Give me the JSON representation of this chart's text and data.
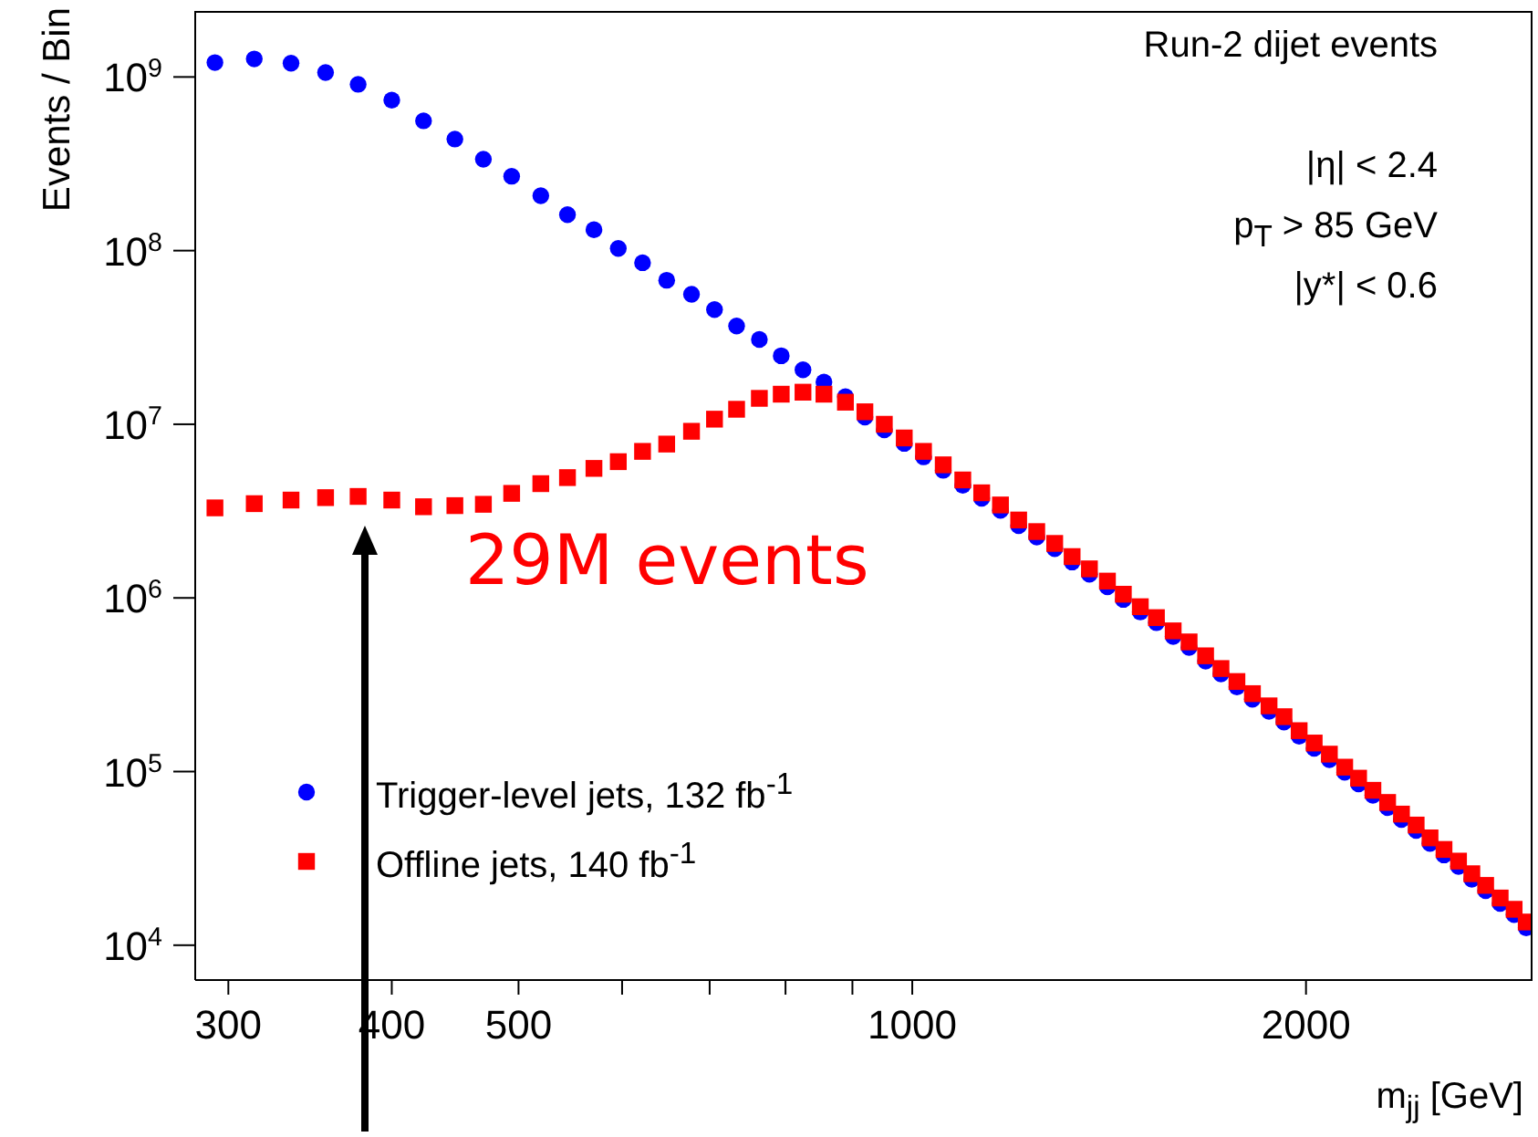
{
  "chart_data": {
    "type": "scatter",
    "xlabel": "m$_{jj}$ [GeV]",
    "ylabel": "Events / Bin",
    "log": "xy",
    "grid": false,
    "legend": "bottom left",
    "annotations": [
      "Run-2 dijet events",
      "|η| < 2.4",
      "p$_{T}$ > 85 GeV",
      "|y*| < 0.6",
      "29M events"
    ],
    "xlim": [
      283,
      2980
    ],
    "ylim": [
      6300,
      2400000000
    ],
    "xticks": [
      300,
      400,
      500,
      {
        "value": 600,
        "label": null
      },
      {
        "value": 700,
        "label": null
      },
      {
        "value": 800,
        "label": null
      },
      {
        "value": 900,
        "label": null
      },
      1000,
      2000
    ],
    "yticks": [
      {
        "value": 10000,
        "label": "10$^{4}$"
      },
      {
        "value": 100000,
        "label": "10$^{5}$"
      },
      {
        "value": 1000000,
        "label": "10$^{6}$"
      },
      {
        "value": 10000000,
        "label": "10$^{7}$"
      },
      {
        "value": 100000000,
        "label": "10$^{8}$"
      },
      {
        "value": 1000000000,
        "label": "10$^{9}$"
      }
    ],
    "x": [
      293,
      314,
      335,
      356,
      377,
      400,
      423,
      447,
      470,
      494,
      520,
      545,
      571,
      596,
      622,
      649,
      678,
      706,
      734,
      764,
      794,
      825,
      856,
      889,
      920,
      952,
      986,
      1020,
      1056,
      1093,
      1130,
      1168,
      1206,
      1245,
      1285,
      1325,
      1366,
      1410,
      1450,
      1494,
      1537,
      1583,
      1628,
      1676,
      1722,
      1771,
      1820,
      1874,
      1924,
      1976,
      2029,
      2084,
      2141,
      2194,
      2250,
      2309,
      2366,
      2428,
      2488,
      2550,
      2616,
      2678,
      2744,
      2815,
      2885,
      2947
    ],
    "series": [
      {
        "name": "Trigger-level jets, 132 fb$^{-1}$",
        "color": "#0000ff",
        "marker": "circle",
        "values": [
          1210000000,
          1270000000,
          1200000000,
          1060000000,
          907000000,
          735000000,
          559000000,
          439000000,
          336000000,
          268000000,
          207000000,
          161000000,
          132000000,
          103000000,
          85200000,
          67500000,
          56000000,
          45800000,
          36800000,
          30800000,
          24800000,
          20600000,
          17500000,
          14400000,
          11000000,
          9300000,
          7760000,
          6490000,
          5430000,
          4450000,
          3750000,
          3190000,
          2610000,
          2240000,
          1920000,
          1610000,
          1370000,
          1160000,
          980000,
          830000,
          720000,
          600000,
          519000,
          432000,
          365000,
          307000,
          261000,
          222000,
          193000,
          160000,
          136000,
          117000,
          99000,
          85000,
          73000,
          62000,
          53000,
          45800,
          38600,
          33100,
          28400,
          24000,
          20600,
          17400,
          15000,
          12600
        ]
      },
      {
        "name": "Offline jets, 140 fb$^{-1}$",
        "color": "#ff0000",
        "marker": "square",
        "values": [
          3300000,
          3490000,
          3660000,
          3780000,
          3840000,
          3660000,
          3350000,
          3400000,
          3460000,
          4000000,
          4550000,
          4930000,
          5570000,
          6090000,
          6980000,
          7690000,
          9110000,
          10700000,
          12200000,
          14100000,
          14900000,
          15300000,
          14900000,
          13400000,
          11800000,
          10000000,
          8340000,
          6980000,
          5840000,
          4780000,
          4030000,
          3430000,
          2810000,
          2410000,
          2060000,
          1730000,
          1470000,
          1250000,
          1050000,
          890000,
          770000,
          646000,
          558000,
          464000,
          392000,
          330000,
          281000,
          239000,
          207000,
          172000,
          146000,
          126000,
          106000,
          91600,
          78000,
          66400,
          56900,
          49200,
          41500,
          35600,
          30500,
          25800,
          22100,
          18700,
          16100,
          13600
        ]
      }
    ]
  }
}
